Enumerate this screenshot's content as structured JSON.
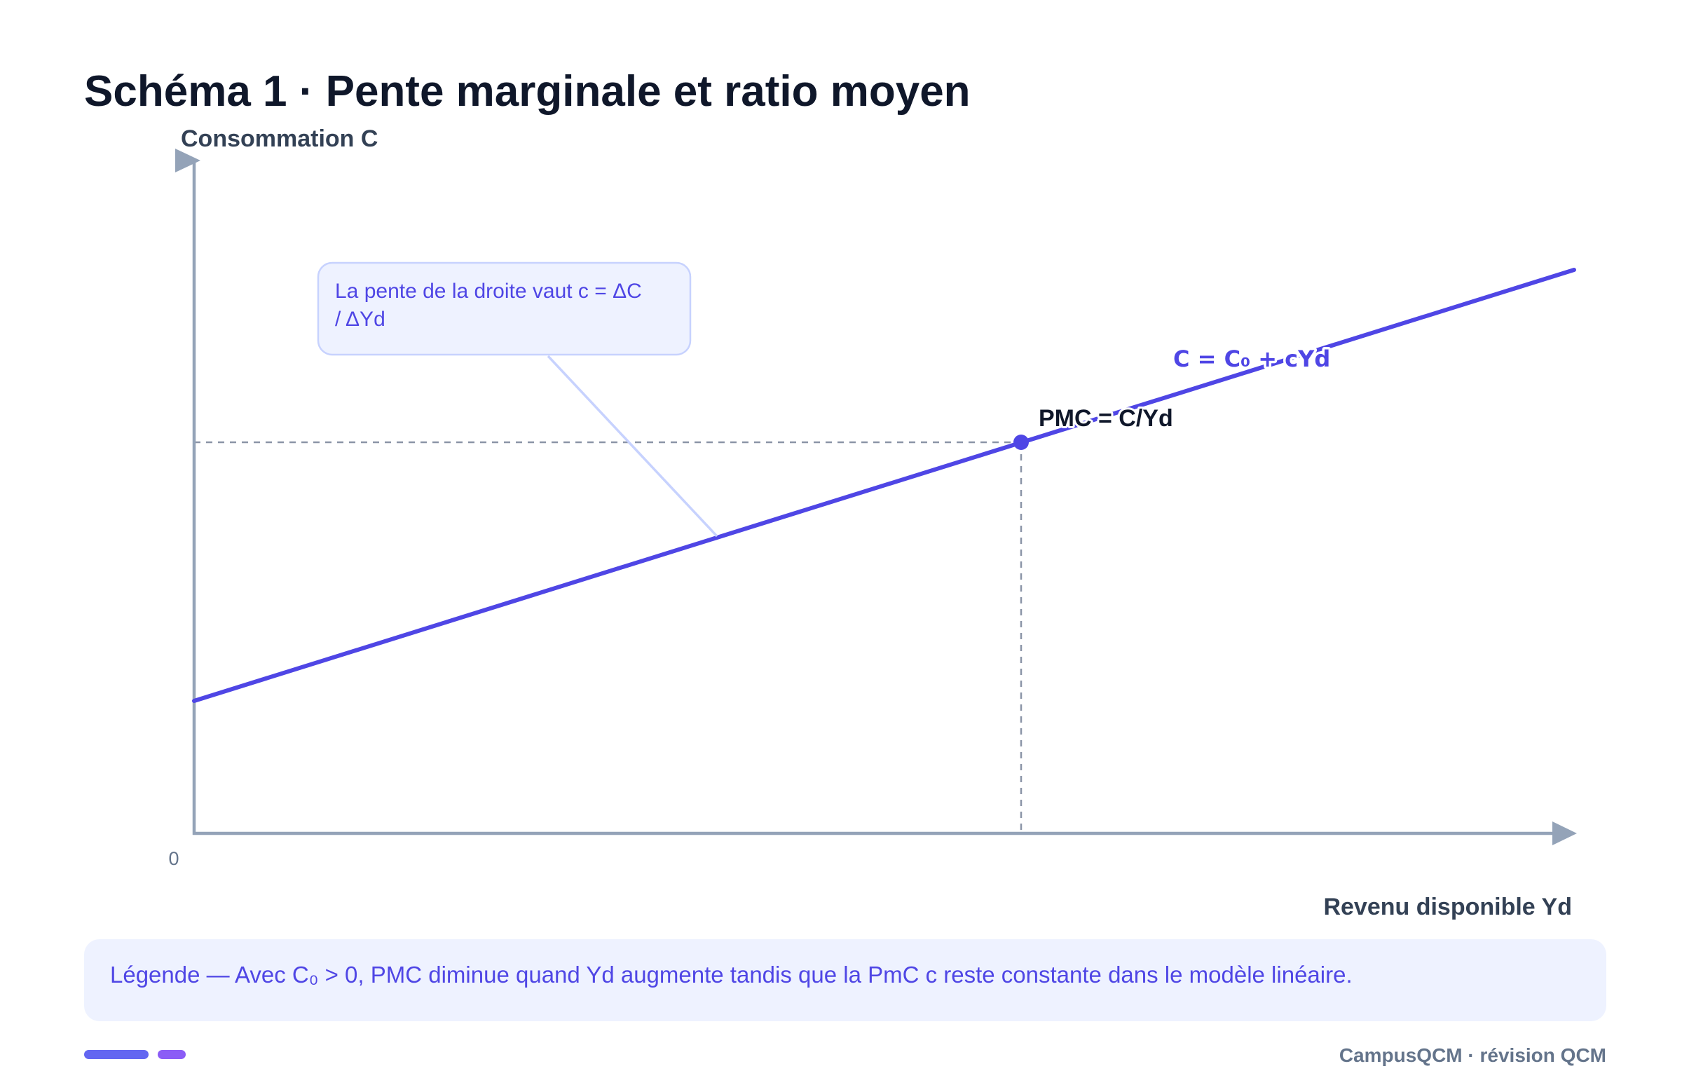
{
  "title": "Schéma 1 · Pente marginale et ratio moyen",
  "diagram": {
    "y_axis_label": "Consommation C",
    "x_axis_label": "Revenu disponible Yd",
    "origin_label": "0",
    "line_label": "C = C₀ + cYd",
    "point_label": "PMC = C/Yd",
    "callout": {
      "lines": [
        "La pente de la droite vaut c = ΔC",
        "/ ΔYd"
      ]
    }
  },
  "legend": {
    "text": "Légende — Avec C₀ > 0, PMC diminue quand Yd augmente tandis que la PmC c reste constante dans le modèle linéaire."
  },
  "footer": {
    "brand": "CampusQCM · révision QCM"
  },
  "colors": {
    "accent": "#4f46e5",
    "axis": "#94a3b8",
    "title": "#0f172a",
    "muted": "#64748b",
    "callout_bg": "#eef2ff",
    "callout_border": "#c7d2fe",
    "pill_primary": "#6366f1",
    "pill_secondary": "#8b5cf6"
  }
}
